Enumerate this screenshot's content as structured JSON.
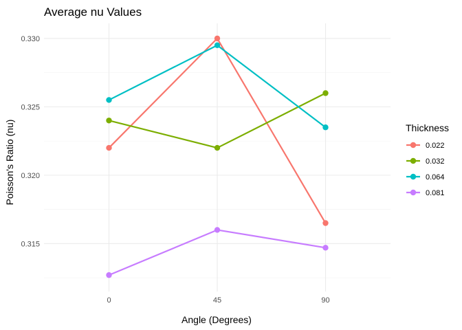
{
  "chart_data": {
    "type": "line",
    "title": "Average nu Values",
    "xlabel": "Angle (Degrees)",
    "ylabel": "Poisson's Ratio (nu)",
    "categories": [
      "0",
      "45",
      "90"
    ],
    "y_ticks": [
      "0.315",
      "0.320",
      "0.325",
      "0.330"
    ],
    "ylim": [
      0.3115,
      0.3311
    ],
    "grid": true,
    "legend": {
      "title": "Thickness",
      "position": "right"
    },
    "series": [
      {
        "name": "0.022",
        "color": "#F8766D",
        "values": [
          0.322,
          0.33,
          0.3165
        ]
      },
      {
        "name": "0.032",
        "color": "#7CAE00",
        "values": [
          0.324,
          0.322,
          0.326
        ]
      },
      {
        "name": "0.064",
        "color": "#00BFC4",
        "values": [
          0.3255,
          0.3295,
          0.3235
        ]
      },
      {
        "name": "0.081",
        "color": "#C77CFF",
        "values": [
          0.3127,
          0.316,
          0.3147
        ]
      }
    ]
  }
}
